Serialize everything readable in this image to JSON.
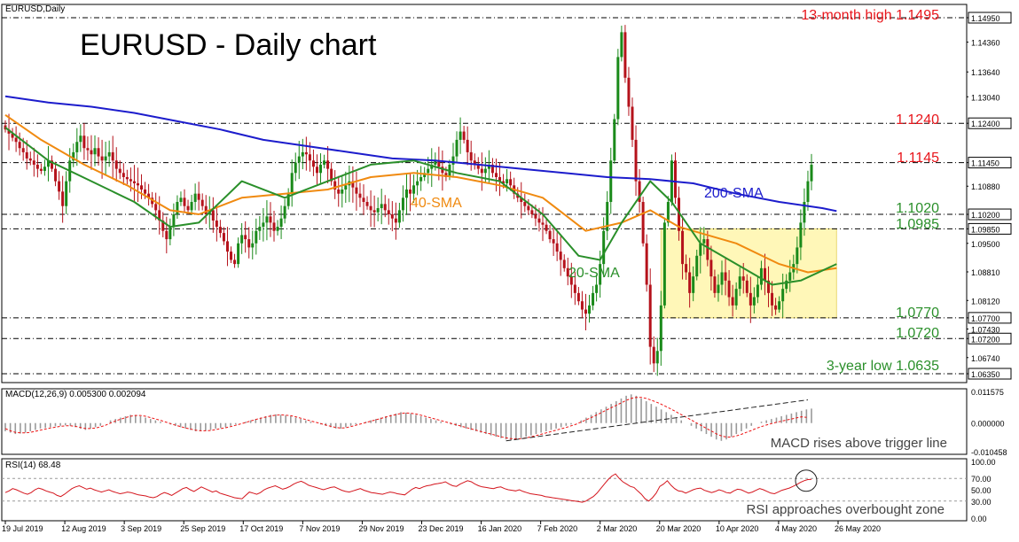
{
  "chart_data": {
    "type": "candlestick",
    "instrument_label": "EURUSD,Daily",
    "title": "EURUSD - Daily chart",
    "price_axis": {
      "ylim": [
        1.0635,
        1.1495
      ],
      "ticks": [
        "1.14950",
        "1.14360",
        "1.13640",
        "1.13040",
        "1.12400",
        "1.11450",
        "1.10880",
        "1.10200",
        "1.09850",
        "1.09500",
        "1.08810",
        "1.08120",
        "1.07700",
        "1.07430",
        "1.07200",
        "1.06740",
        "1.06350"
      ]
    },
    "x_axis": {
      "ticks": [
        "19 Jul 2019",
        "12 Aug 2019",
        "3 Sep 2019",
        "25 Sep 2019",
        "17 Oct 2019",
        "7 Nov 2019",
        "29 Nov 2019",
        "23 Dec 2019",
        "16 Jan 2020",
        "7 Feb 2020",
        "2 Mar 2020",
        "20 Mar 2020",
        "10 Apr 2020",
        "4 May 2020",
        "26 May 2020"
      ]
    },
    "levels": [
      {
        "value": 1.1495,
        "label": "13-month high 1.1495",
        "color": "#e8151b"
      },
      {
        "value": 1.124,
        "label": "1.1240",
        "color": "#e8151b"
      },
      {
        "value": 1.1145,
        "label": "1.1145",
        "color": "#e8151b"
      },
      {
        "value": 1.102,
        "label": "1.1020",
        "color": "#2a8f2a"
      },
      {
        "value": 1.0985,
        "label": "1.0985",
        "color": "#2a8f2a"
      },
      {
        "value": 1.077,
        "label": "1.0770",
        "color": "#2a8f2a"
      },
      {
        "value": 1.072,
        "label": "1.0720",
        "color": "#2a8f2a"
      },
      {
        "value": 1.0635,
        "label": "3-year low 1.0635",
        "color": "#2a8f2a"
      }
    ],
    "ma_labels": {
      "sma200": "200-SMA",
      "sma40": "40-SMA",
      "sma20": "20-SMA"
    },
    "closes": [
      1.1225,
      1.1215,
      1.1205,
      1.1195,
      1.118,
      1.117,
      1.1155,
      1.115,
      1.114,
      1.113,
      1.1125,
      1.1135,
      1.115,
      1.113,
      1.11,
      1.1075,
      1.104,
      1.11,
      1.115,
      1.117,
      1.1195,
      1.121,
      1.118,
      1.1175,
      1.1165,
      1.118,
      1.116,
      1.115,
      1.116,
      1.117,
      1.115,
      1.113,
      1.112,
      1.111,
      1.1105,
      1.11,
      1.1095,
      1.109,
      1.108,
      1.107,
      1.106,
      1.1045,
      1.103,
      1.1005,
      1.098,
      1.096,
      1.099,
      1.102,
      1.105,
      1.106,
      1.104,
      1.103,
      1.105,
      1.107,
      1.1055,
      1.104,
      1.102,
      1.103,
      1.1005,
      1.099,
      1.0975,
      1.0955,
      1.093,
      1.091,
      1.09,
      1.095,
      1.097,
      1.096,
      1.094,
      1.095,
      1.098,
      1.099,
      1.1,
      1.1015,
      1.1,
      1.098,
      1.099,
      1.101,
      1.104,
      1.107,
      1.112,
      1.1145,
      1.116,
      1.117,
      1.1165,
      1.115,
      1.1135,
      1.112,
      1.114,
      1.115,
      1.113,
      1.11,
      1.108,
      1.107,
      1.108,
      1.109,
      1.11,
      1.1085,
      1.107,
      1.106,
      1.105,
      1.104,
      1.103,
      1.1025,
      1.1035,
      1.1045,
      1.103,
      1.102,
      1.101,
      1.1,
      1.103,
      1.106,
      1.108,
      1.107,
      1.109,
      1.11,
      1.111,
      1.112,
      1.113,
      1.114,
      1.115,
      1.1135,
      1.112,
      1.111,
      1.114,
      1.116,
      1.12,
      1.122,
      1.12,
      1.117,
      1.115,
      1.114,
      1.113,
      1.112,
      1.113,
      1.114,
      1.112,
      1.111,
      1.11,
      1.1095,
      1.1105,
      1.109,
      1.107,
      1.106,
      1.105,
      1.104,
      1.103,
      1.102,
      1.101,
      1.1,
      1.0995,
      1.098,
      1.096,
      1.095,
      1.093,
      1.091,
      1.089,
      1.087,
      1.085,
      1.083,
      1.081,
      1.079,
      1.078,
      1.08,
      1.083,
      1.085,
      1.09,
      1.098,
      1.105,
      1.115,
      1.125,
      1.14,
      1.146,
      1.135,
      1.128,
      1.12,
      1.11,
      1.105,
      1.095,
      1.085,
      1.07,
      1.066,
      1.069,
      1.08,
      1.1,
      1.105,
      1.115,
      1.106,
      1.098,
      1.09,
      1.088,
      1.083,
      1.087,
      1.092,
      1.095,
      1.096,
      1.091,
      1.087,
      1.083,
      1.085,
      1.088,
      1.086,
      1.082,
      1.08,
      1.084,
      1.087,
      1.086,
      1.083,
      1.08,
      1.082,
      1.085,
      1.089,
      1.086,
      1.083,
      1.08,
      1.079,
      1.081,
      1.084,
      1.086,
      1.088,
      1.09,
      1.094,
      1.1,
      1.105,
      1.11,
      1.114
    ],
    "sma200_points": [
      [
        1.1305,
        0
      ],
      [
        1.129,
        12
      ],
      [
        1.128,
        24
      ],
      [
        1.1265,
        36
      ],
      [
        1.1245,
        48
      ],
      [
        1.1225,
        60
      ],
      [
        1.12,
        72
      ],
      [
        1.1185,
        84
      ],
      [
        1.117,
        96
      ],
      [
        1.1155,
        108
      ],
      [
        1.115,
        120
      ],
      [
        1.114,
        132
      ],
      [
        1.113,
        144
      ],
      [
        1.112,
        156
      ],
      [
        1.111,
        168
      ],
      [
        1.1105,
        180
      ],
      [
        1.1095,
        192
      ],
      [
        1.107,
        204
      ],
      [
        1.105,
        216
      ],
      [
        1.1035,
        228
      ],
      [
        1.1028,
        232
      ]
    ],
    "sma40_points": [
      [
        1.126,
        0
      ],
      [
        1.12,
        10
      ],
      [
        1.114,
        22
      ],
      [
        1.109,
        34
      ],
      [
        1.103,
        46
      ],
      [
        1.102,
        54
      ],
      [
        1.106,
        66
      ],
      [
        1.107,
        78
      ],
      [
        1.108,
        90
      ],
      [
        1.111,
        102
      ],
      [
        1.112,
        114
      ],
      [
        1.111,
        126
      ],
      [
        1.109,
        138
      ],
      [
        1.106,
        150
      ],
      [
        1.098,
        162
      ],
      [
        1.1,
        172
      ],
      [
        1.103,
        180
      ],
      [
        1.099,
        188
      ],
      [
        1.097,
        196
      ],
      [
        1.095,
        204
      ],
      [
        1.09,
        216
      ],
      [
        1.088,
        224
      ],
      [
        1.089,
        232
      ]
    ],
    "sma20_points": [
      [
        1.123,
        0
      ],
      [
        1.115,
        12
      ],
      [
        1.11,
        24
      ],
      [
        1.105,
        36
      ],
      [
        1.099,
        46
      ],
      [
        1.1,
        54
      ],
      [
        1.11,
        66
      ],
      [
        1.106,
        78
      ],
      [
        1.11,
        90
      ],
      [
        1.114,
        102
      ],
      [
        1.115,
        114
      ],
      [
        1.112,
        126
      ],
      [
        1.11,
        138
      ],
      [
        1.102,
        150
      ],
      [
        1.092,
        160
      ],
      [
        1.091,
        166
      ],
      [
        1.1,
        172
      ],
      [
        1.11,
        180
      ],
      [
        1.105,
        186
      ],
      [
        1.095,
        194
      ],
      [
        1.09,
        204
      ],
      [
        1.085,
        214
      ],
      [
        1.086,
        222
      ],
      [
        1.09,
        232
      ]
    ],
    "consolidation_box": {
      "from": 183,
      "to": 232,
      "high": 1.0985,
      "low": 1.077
    },
    "macd": {
      "label": "MACD(12,26,9) 0.005300 0.002094",
      "ticks": [
        "0.011575",
        "0.000000",
        "-0.010458"
      ],
      "annotation": "MACD rises above trigger line",
      "histogram": [
        -0.003,
        -0.0035,
        -0.004,
        -0.0038,
        -0.0035,
        -0.003,
        -0.0025,
        -0.002,
        -0.0018,
        -0.0015,
        -0.0012,
        -0.001,
        -0.0008,
        -0.001,
        -0.0015,
        -0.002,
        -0.0025,
        -0.002,
        -0.0015,
        -0.001,
        0.0,
        0.001,
        0.0015,
        0.002,
        0.0025,
        0.003,
        0.003,
        0.0025,
        0.002,
        0.0015,
        0.001,
        0.0005,
        0.0,
        -0.0005,
        -0.001,
        -0.0015,
        -0.002,
        -0.0025,
        -0.003,
        -0.003,
        -0.0028,
        -0.0025,
        -0.002,
        -0.0018,
        -0.0015,
        -0.001,
        -0.0005,
        0.0,
        0.0005,
        0.001,
        0.0015,
        0.002,
        0.0025,
        0.003,
        0.0032,
        0.003,
        0.0028,
        0.0025,
        0.002,
        0.0015,
        0.001,
        0.0005,
        0.0,
        -0.0005,
        -0.001,
        -0.0015,
        -0.002,
        -0.002,
        -0.0015,
        -0.001,
        -0.0005,
        0.0,
        0.0005,
        0.001,
        0.0015,
        0.002,
        0.0025,
        0.003,
        0.0035,
        0.004,
        0.0038,
        0.0035,
        0.003,
        0.0025,
        0.002,
        0.0015,
        0.001,
        0.0005,
        0.0,
        -0.0005,
        -0.001,
        -0.0015,
        -0.002,
        -0.0025,
        -0.003,
        -0.0035,
        -0.004,
        -0.0045,
        -0.005,
        -0.0055,
        -0.006,
        -0.0062,
        -0.006,
        -0.0055,
        -0.005,
        -0.0045,
        -0.004,
        -0.0035,
        -0.003,
        -0.0025,
        -0.002,
        -0.0015,
        -0.001,
        -0.0005,
        0.0,
        0.001,
        0.002,
        0.003,
        0.004,
        0.005,
        0.006,
        0.007,
        0.008,
        0.009,
        0.01,
        0.0105,
        0.01,
        0.009,
        0.008,
        0.007,
        0.006,
        0.005,
        0.004,
        0.003,
        0.002,
        0.001,
        0.0,
        -0.001,
        -0.002,
        -0.003,
        -0.004,
        -0.005,
        -0.006,
        -0.0065,
        -0.006,
        -0.005,
        -0.004,
        -0.003,
        -0.002,
        -0.001,
        0.0,
        0.0005,
        0.001,
        0.0015,
        0.002,
        0.0025,
        0.003,
        0.0035,
        0.004,
        0.0045,
        0.005,
        0.0053
      ],
      "signal": [
        -0.002,
        -0.0028,
        -0.0034,
        -0.0036,
        -0.0036,
        -0.0034,
        -0.003,
        -0.0026,
        -0.0022,
        -0.0018,
        -0.0015,
        -0.0012,
        -0.001,
        -0.001,
        -0.0012,
        -0.0016,
        -0.002,
        -0.002,
        -0.0018,
        -0.0014,
        -0.0008,
        0.0,
        0.0008,
        0.0014,
        0.002,
        0.0025,
        0.0028,
        0.0028,
        0.0025,
        0.002,
        0.0015,
        0.001,
        0.0004,
        -0.0002,
        -0.0008,
        -0.0013,
        -0.0018,
        -0.0022,
        -0.0026,
        -0.0028,
        -0.0028,
        -0.0027,
        -0.0024,
        -0.002,
        -0.0017,
        -0.0013,
        -0.0008,
        -0.0003,
        0.0002,
        0.0008,
        0.0013,
        0.0018,
        0.0022,
        0.0026,
        0.0029,
        0.003,
        0.0029,
        0.0027,
        0.0023,
        0.0018,
        0.0013,
        0.0008,
        0.0003,
        -0.0002,
        -0.0007,
        -0.0012,
        -0.0016,
        -0.0018,
        -0.0017,
        -0.0013,
        -0.0008,
        -0.0003,
        0.0002,
        0.0007,
        0.0012,
        0.0017,
        0.0022,
        0.0027,
        0.0031,
        0.0035,
        0.0037,
        0.0036,
        0.0033,
        0.0029,
        0.0024,
        0.0019,
        0.0014,
        0.0009,
        0.0004,
        -0.0001,
        -0.0006,
        -0.0011,
        -0.0016,
        -0.0021,
        -0.0026,
        -0.0031,
        -0.0036,
        -0.004,
        -0.0045,
        -0.005,
        -0.0054,
        -0.0057,
        -0.0058,
        -0.0057,
        -0.0054,
        -0.005,
        -0.0046,
        -0.0041,
        -0.0036,
        -0.0031,
        -0.0026,
        -0.0021,
        -0.0016,
        -0.001,
        -0.0004,
        0.0004,
        0.0012,
        0.002,
        0.0029,
        0.0038,
        0.0047,
        0.0056,
        0.0065,
        0.0074,
        0.0083,
        0.009,
        0.0094,
        0.0094,
        0.009,
        0.0084,
        0.0077,
        0.0069,
        0.006,
        0.0051,
        0.0041,
        0.0031,
        0.0021,
        0.0011,
        0.0001,
        -0.0009,
        -0.0019,
        -0.0029,
        -0.0039,
        -0.0047,
        -0.0051,
        -0.0051,
        -0.0047,
        -0.0041,
        -0.0034,
        -0.0027,
        -0.0019,
        -0.0013,
        -0.0007,
        -0.0002,
        0.0003,
        0.0007,
        0.0011,
        0.0015,
        0.0019,
        0.0023,
        0.0021
      ]
    },
    "rsi": {
      "label": "RSI(14) 68.48",
      "ticks": [
        "100.00",
        "70.00",
        "50.00",
        "30.00",
        "0.00"
      ],
      "annotation": "RSI approaches overbought zone",
      "values": [
        45,
        48,
        52,
        50,
        47,
        44,
        42,
        45,
        50,
        53,
        51,
        48,
        46,
        44,
        40,
        38,
        42,
        47,
        52,
        55,
        57,
        54,
        51,
        53,
        50,
        48,
        46,
        48,
        50,
        47,
        45,
        43,
        44,
        46,
        45,
        43,
        41,
        40,
        39,
        37,
        36,
        38,
        42,
        45,
        43,
        40,
        44,
        48,
        52,
        54,
        50,
        47,
        51,
        55,
        52,
        49,
        46,
        48,
        44,
        42,
        40,
        38,
        36,
        35,
        34,
        40,
        46,
        44,
        42,
        45,
        50,
        53,
        55,
        57,
        54,
        51,
        53,
        56,
        60,
        63,
        65,
        62,
        58,
        56,
        54,
        52,
        50,
        52,
        54,
        55,
        52,
        49,
        47,
        46,
        48,
        50,
        52,
        49,
        47,
        45,
        44,
        43,
        42,
        44,
        46,
        45,
        43,
        42,
        41,
        46,
        51,
        54,
        52,
        55,
        57,
        58,
        60,
        61,
        62,
        64,
        60,
        57,
        56,
        60,
        63,
        66,
        64,
        60,
        57,
        55,
        54,
        53,
        52,
        54,
        55,
        52,
        50,
        49,
        48,
        50,
        47,
        45,
        43,
        42,
        41,
        40,
        38,
        37,
        36,
        35,
        34,
        33,
        32,
        31,
        30,
        29,
        28,
        30,
        34,
        38,
        44,
        52,
        60,
        68,
        74,
        78,
        70,
        64,
        60,
        56,
        54,
        48,
        42,
        34,
        30,
        36,
        44,
        56,
        60,
        66,
        58,
        52,
        48,
        47,
        44,
        47,
        50,
        52,
        53,
        49,
        47,
        45,
        47,
        50,
        48,
        45,
        44,
        48,
        51,
        50,
        47,
        44,
        46,
        49,
        52,
        50,
        47,
        44,
        43,
        46,
        49,
        51,
        53,
        56,
        59,
        63,
        66,
        68,
        68.48
      ]
    }
  }
}
